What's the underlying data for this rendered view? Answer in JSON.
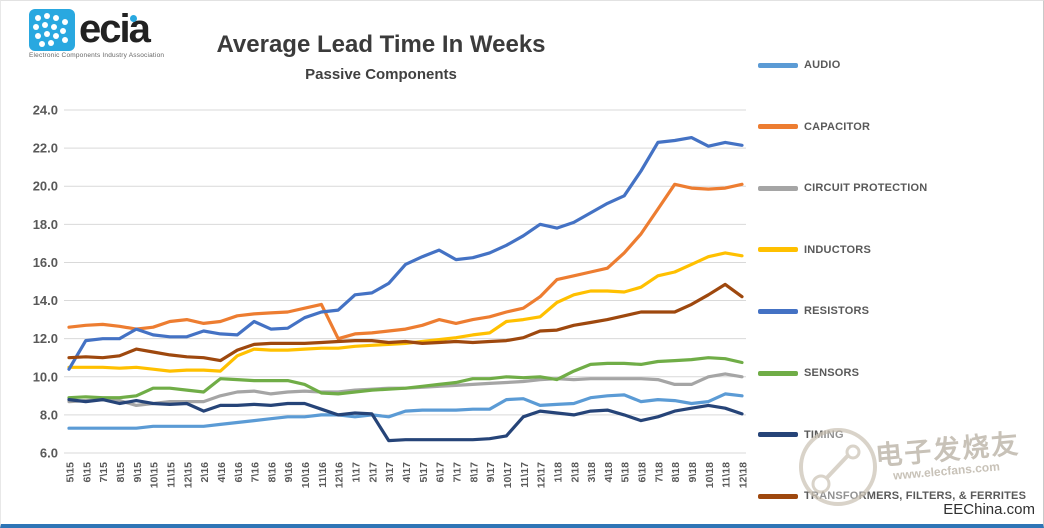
{
  "logo": {
    "name": "ecia",
    "tagline": "Electronic Components Industry Association"
  },
  "title": "Average Lead Time In Weeks",
  "subtitle": "Passive Components",
  "watermark": {
    "cn_text": "电子发烧友",
    "url_text": "www.elecfans.com",
    "site_text": "EEChina.com"
  },
  "chart_data": {
    "type": "line",
    "title": "Average Lead Time In Weeks",
    "subtitle": "Passive Components",
    "xlabel": "",
    "ylabel": "",
    "ylim": [
      6,
      24
    ],
    "ytick_step": 2,
    "grid": "horizontal",
    "legend_position": "right",
    "categories": [
      "5\\15",
      "6\\15",
      "7\\15",
      "8\\15",
      "9\\15",
      "10\\15",
      "11\\15",
      "12\\15",
      "2\\16",
      "4\\16",
      "6\\16",
      "7\\16",
      "8\\16",
      "9\\16",
      "10\\16",
      "11\\16",
      "12\\16",
      "1\\17",
      "2\\17",
      "3\\17",
      "4\\17",
      "5\\17",
      "6\\17",
      "7\\17",
      "8\\17",
      "9\\17",
      "10\\17",
      "11\\17",
      "12\\17",
      "1\\18",
      "2\\18",
      "3\\18",
      "4\\18",
      "5\\18",
      "6\\18",
      "7\\18",
      "8\\18",
      "9\\18",
      "10\\18",
      "11\\18",
      "12\\18"
    ],
    "series": [
      {
        "name": "AUDIO",
        "color": "#5B9BD5",
        "values": [
          7.3,
          7.3,
          7.3,
          7.3,
          7.3,
          7.4,
          7.4,
          7.4,
          7.4,
          7.5,
          7.6,
          7.7,
          7.8,
          7.9,
          7.9,
          8.0,
          8.0,
          7.9,
          8.0,
          7.9,
          8.2,
          8.25,
          8.25,
          8.25,
          8.3,
          8.3,
          8.8,
          8.85,
          8.5,
          8.55,
          8.6,
          8.9,
          9.0,
          9.05,
          8.7,
          8.8,
          8.75,
          8.6,
          8.7,
          9.1,
          9.0
        ]
      },
      {
        "name": "CAPACITOR",
        "color": "#ED7D31",
        "values": [
          12.6,
          12.7,
          12.75,
          12.65,
          12.5,
          12.6,
          12.9,
          13.0,
          12.8,
          12.9,
          13.2,
          13.3,
          13.35,
          13.4,
          13.6,
          13.8,
          12.0,
          12.25,
          12.3,
          12.4,
          12.5,
          12.7,
          13.0,
          12.8,
          13.0,
          13.15,
          13.4,
          13.6,
          14.2,
          15.1,
          15.3,
          15.5,
          15.7,
          16.5,
          17.5,
          18.8,
          20.1,
          19.9,
          19.85,
          19.9,
          20.1
        ]
      },
      {
        "name": "CIRCUIT PROTECTION",
        "color": "#A5A5A5",
        "values": [
          8.7,
          8.75,
          8.8,
          8.75,
          8.5,
          8.6,
          8.7,
          8.7,
          8.7,
          9.0,
          9.2,
          9.25,
          9.1,
          9.2,
          9.25,
          9.2,
          9.2,
          9.3,
          9.35,
          9.4,
          9.4,
          9.45,
          9.5,
          9.55,
          9.6,
          9.65,
          9.7,
          9.75,
          9.85,
          9.9,
          9.85,
          9.9,
          9.9,
          9.9,
          9.9,
          9.85,
          9.6,
          9.6,
          10.0,
          10.15,
          10.0
        ]
      },
      {
        "name": "INDUCTORS",
        "color": "#FFC000",
        "values": [
          10.5,
          10.5,
          10.5,
          10.45,
          10.5,
          10.4,
          10.3,
          10.35,
          10.35,
          10.3,
          11.1,
          11.45,
          11.4,
          11.4,
          11.45,
          11.5,
          11.5,
          11.6,
          11.65,
          11.7,
          11.75,
          11.85,
          11.95,
          12.05,
          12.2,
          12.3,
          12.9,
          13.0,
          13.15,
          13.9,
          14.3,
          14.5,
          14.5,
          14.45,
          14.7,
          15.3,
          15.5,
          15.9,
          16.3,
          16.5,
          16.35
        ]
      },
      {
        "name": "RESISTORS",
        "color": "#4472C4",
        "values": [
          10.4,
          11.9,
          12.0,
          12.0,
          12.5,
          12.2,
          12.1,
          12.1,
          12.4,
          12.25,
          12.2,
          12.9,
          12.5,
          12.55,
          13.1,
          13.4,
          13.5,
          14.3,
          14.4,
          14.9,
          15.9,
          16.3,
          16.65,
          16.15,
          16.25,
          16.5,
          16.9,
          17.4,
          18.0,
          17.8,
          18.1,
          18.6,
          19.1,
          19.5,
          20.8,
          22.3,
          22.4,
          22.55,
          22.1,
          22.3,
          22.15
        ]
      },
      {
        "name": "SENSORS",
        "color": "#70AD47",
        "values": [
          8.9,
          8.95,
          8.9,
          8.9,
          9.0,
          9.4,
          9.4,
          9.3,
          9.2,
          9.9,
          9.85,
          9.8,
          9.8,
          9.8,
          9.6,
          9.15,
          9.1,
          9.2,
          9.3,
          9.35,
          9.4,
          9.5,
          9.6,
          9.7,
          9.9,
          9.9,
          10.0,
          9.95,
          10.0,
          9.85,
          10.3,
          10.65,
          10.7,
          10.7,
          10.65,
          10.8,
          10.85,
          10.9,
          11.0,
          10.95,
          10.75
        ]
      },
      {
        "name": "TIMING",
        "color": "#264478",
        "values": [
          8.8,
          8.7,
          8.8,
          8.6,
          8.75,
          8.6,
          8.55,
          8.6,
          8.2,
          8.5,
          8.5,
          8.55,
          8.5,
          8.6,
          8.6,
          8.3,
          8.0,
          8.1,
          8.05,
          6.65,
          6.7,
          6.7,
          6.7,
          6.7,
          6.7,
          6.75,
          6.9,
          7.9,
          8.2,
          8.1,
          8.0,
          8.2,
          8.25,
          8.0,
          7.7,
          7.9,
          8.2,
          8.35,
          8.5,
          8.35,
          8.05
        ]
      },
      {
        "name": "TRANSFORMERS, FILTERS, & FERRITES",
        "color": "#9E480E",
        "values": [
          11.0,
          11.05,
          11.0,
          11.1,
          11.45,
          11.3,
          11.15,
          11.05,
          11.0,
          10.85,
          11.4,
          11.7,
          11.75,
          11.75,
          11.75,
          11.8,
          11.85,
          11.9,
          11.9,
          11.8,
          11.85,
          11.75,
          11.8,
          11.85,
          11.8,
          11.85,
          11.9,
          12.05,
          12.4,
          12.45,
          12.7,
          12.85,
          13.0,
          13.2,
          13.4,
          13.4,
          13.4,
          13.8,
          14.3,
          14.85,
          14.2
        ]
      }
    ]
  }
}
